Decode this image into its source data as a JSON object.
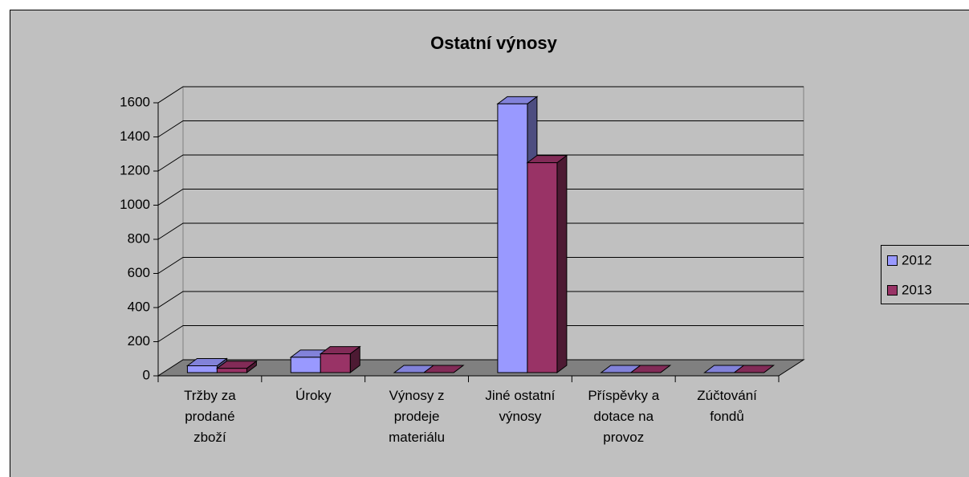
{
  "chart_data": {
    "type": "bar3d",
    "title": "Ostatní výnosy",
    "categories": [
      "Tržby za prodané zboží",
      "Úroky",
      "Výnosy z prodeje materiálu",
      "Jiné ostatní výnosy",
      "Příspěvky a dotace na provoz",
      "Zúčtování fondů"
    ],
    "series": [
      {
        "name": "2012",
        "color": "#9999ff",
        "values": [
          40,
          90,
          0,
          1575,
          0,
          0
        ]
      },
      {
        "name": "2013",
        "color": "#993366",
        "values": [
          25,
          110,
          0,
          1230,
          0,
          0
        ]
      }
    ],
    "ylim": [
      0,
      1600
    ],
    "yticks": [
      0,
      200,
      400,
      600,
      800,
      1000,
      1200,
      1400,
      1600
    ],
    "grid": true,
    "legend": "right"
  }
}
